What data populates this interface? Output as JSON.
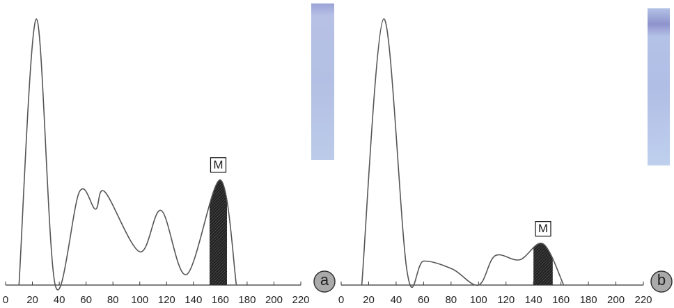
{
  "chart_data": [
    {
      "type": "line",
      "panel_label": "a",
      "annotation": "M",
      "color": "#555555",
      "x": [
        10,
        23,
        37,
        55,
        67,
        74,
        100,
        116,
        135,
        160,
        172
      ],
      "values": [
        0,
        100,
        0,
        35,
        28.5,
        35,
        12.5,
        28,
        4,
        39.5,
        0
      ],
      "highlight": [
        152,
        165
      ],
      "xlim": [
        0,
        220
      ],
      "xticks": [
        0,
        20,
        40,
        60,
        80,
        100,
        120,
        140,
        160,
        180,
        200,
        220
      ],
      "ylim": [
        0,
        105
      ]
    },
    {
      "type": "line",
      "panel_label": "b",
      "annotation": "M",
      "color": "#555555",
      "x": [
        15,
        31,
        48,
        60,
        81,
        100,
        112,
        130,
        147,
        162
      ],
      "values": [
        0,
        100,
        5,
        9,
        6,
        0,
        11,
        9.5,
        15.5,
        0
      ],
      "highlight": [
        140,
        154
      ],
      "xlim": [
        0,
        220
      ],
      "xticks": [
        0,
        20,
        40,
        60,
        80,
        100,
        120,
        140,
        160,
        180,
        200,
        220
      ],
      "ylim": [
        0,
        105
      ]
    }
  ]
}
